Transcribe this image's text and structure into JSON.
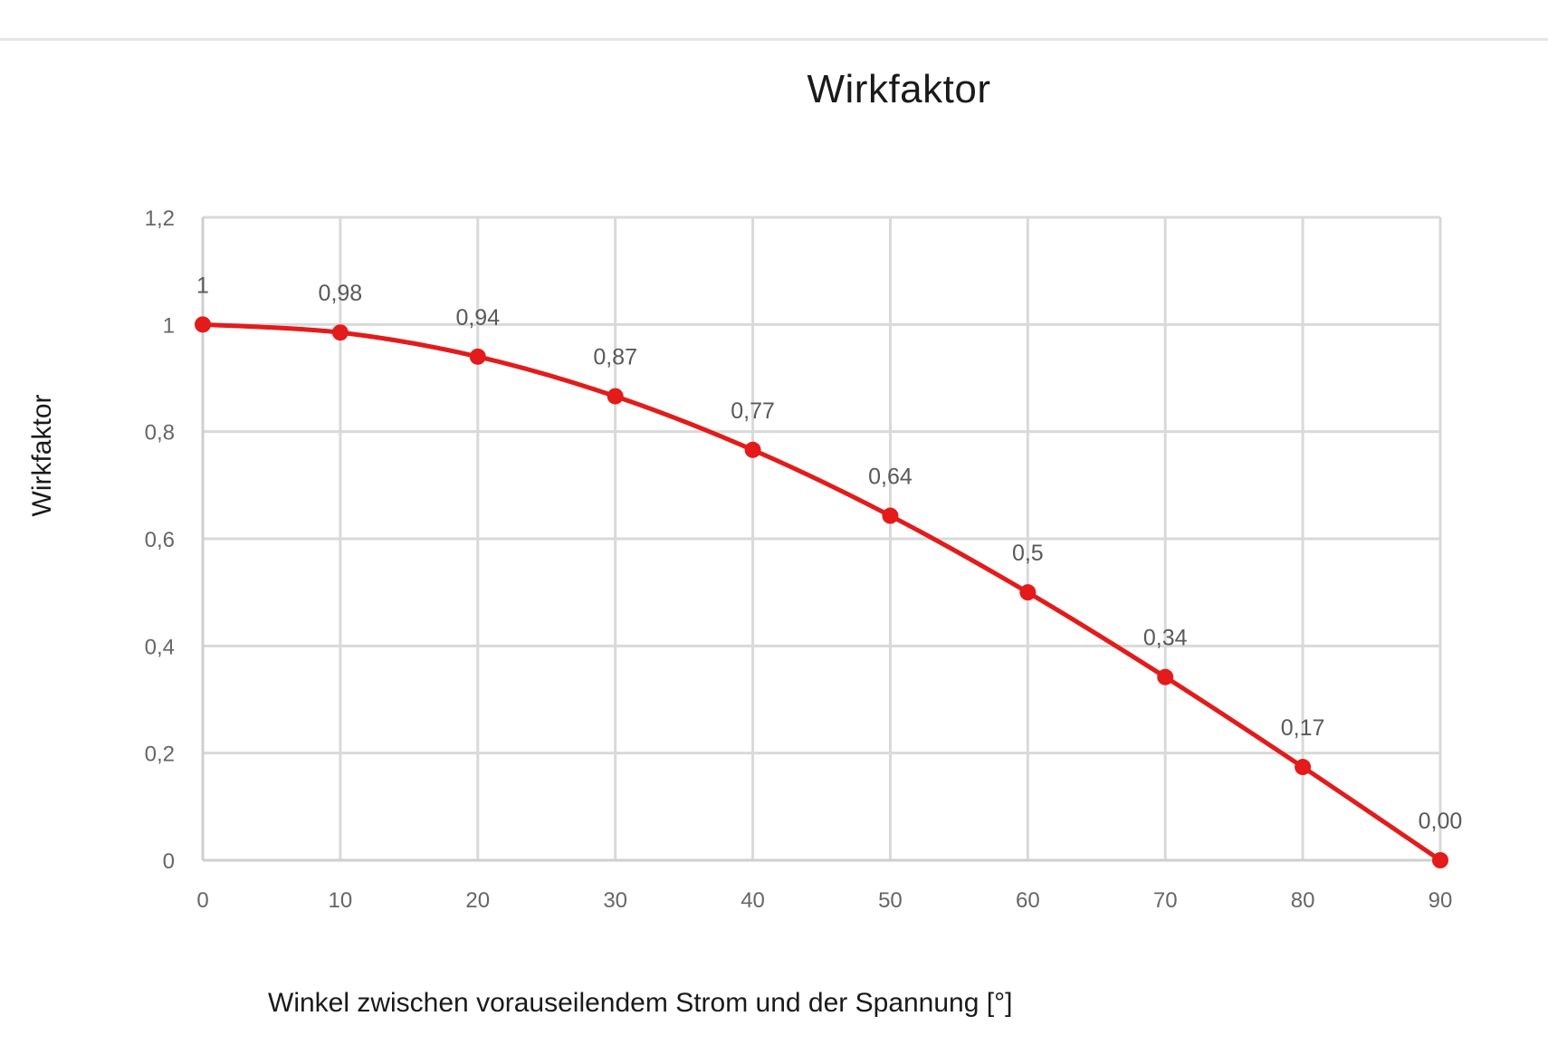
{
  "chart_data": {
    "type": "line",
    "title": "Wirkfaktor",
    "xlabel": "Winkel zwischen vorauseilendem Strom und der Spannung [°]",
    "ylabel": "Wirkfaktor",
    "x": [
      0,
      10,
      20,
      30,
      40,
      50,
      60,
      70,
      80,
      90
    ],
    "series": [
      {
        "name": "Wirkfaktor",
        "color": "#e31b1b",
        "values": [
          1,
          0.985,
          0.94,
          0.866,
          0.766,
          0.643,
          0.5,
          0.342,
          0.174,
          0.0
        ],
        "data_labels": [
          "1",
          "0,98",
          "0,94",
          "0,87",
          "0,77",
          "0,64",
          "0,5",
          "0,34",
          "0,17",
          "0,00"
        ]
      }
    ],
    "xlim": [
      0,
      90
    ],
    "ylim": [
      0,
      1.2
    ],
    "x_ticks": [
      "0",
      "10",
      "20",
      "30",
      "40",
      "50",
      "60",
      "70",
      "80",
      "90"
    ],
    "y_ticks": [
      "0",
      "0,2",
      "0,4",
      "0,6",
      "0,8",
      "1",
      "1,2"
    ],
    "y_tick_values": [
      0,
      0.2,
      0.4,
      0.6,
      0.8,
      1.0,
      1.2
    ],
    "grid": true,
    "legend": "none",
    "smooth": true
  },
  "colors": {
    "series": "#e31b1b",
    "grid": "#d9d9d9",
    "axis": "#cfcfcf",
    "tick_text": "#666666",
    "label_text": "#595959",
    "title_text": "#1a1a1a"
  }
}
